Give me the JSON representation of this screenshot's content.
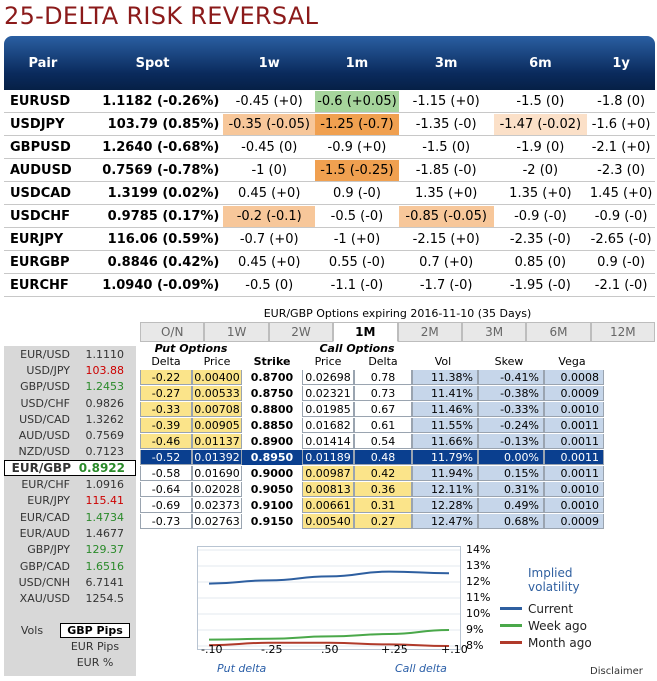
{
  "title": "25-DELTA RISK REVERSAL",
  "rr_headers": [
    "Pair",
    "Spot",
    "1w",
    "1m",
    "3m",
    "6m",
    "1y"
  ],
  "rr_rows": [
    {
      "pair": "EURUSD",
      "spot": "1.1182 (-0.26%)",
      "w1": "-0.45 (+0)",
      "m1": "-0.6 (+0.05)",
      "m3": "-1.15 (+0)",
      "m6": "-1.5 (0)",
      "y1": "-1.8 (0)"
    },
    {
      "pair": "USDJPY",
      "spot": "103.79 (0.85%)",
      "w1": "-0.35 (-0.05)",
      "m1": "-1.25 (-0.7)",
      "m3": "-1.35 (-0)",
      "m6": "-1.47 (-0.02)",
      "y1": "-1.6 (+0)"
    },
    {
      "pair": "GBPUSD",
      "spot": "1.2640 (-0.68%)",
      "w1": "-0.45 (0)",
      "m1": "-0.9 (+0)",
      "m3": "-1.5 (0)",
      "m6": "-1.9 (0)",
      "y1": "-2.1 (+0)"
    },
    {
      "pair": "AUDUSD",
      "spot": "0.7569 (-0.78%)",
      "w1": "-1 (0)",
      "m1": "-1.5 (-0.25)",
      "m3": "-1.85 (-0)",
      "m6": "-2 (0)",
      "y1": "-2.3 (0)"
    },
    {
      "pair": "USDCAD",
      "spot": "1.3199 (0.02%)",
      "w1": "0.45 (+0)",
      "m1": "0.9 (-0)",
      "m3": "1.35 (+0)",
      "m6": "1.35 (+0)",
      "y1": "1.45 (+0)"
    },
    {
      "pair": "USDCHF",
      "spot": "0.9785 (0.17%)",
      "w1": "-0.2 (-0.1)",
      "m1": "-0.5 (-0)",
      "m3": "-0.85 (-0.05)",
      "m6": "-0.9 (-0)",
      "y1": "-0.9 (-0)"
    },
    {
      "pair": "EURJPY",
      "spot": "116.06 (0.59%)",
      "w1": "-0.7 (+0)",
      "m1": "-1 (+0)",
      "m3": "-2.15 (+0)",
      "m6": "-2.35 (-0)",
      "y1": "-2.65 (-0)"
    },
    {
      "pair": "EURGBP",
      "spot": "0.8846 (0.42%)",
      "w1": "0.45 (+0)",
      "m1": "0.55 (-0)",
      "m3": "0.7 (+0)",
      "m6": "0.85 (0)",
      "y1": "0.9 (-0)"
    },
    {
      "pair": "EURCHF",
      "spot": "1.0940 (-0.09%)",
      "w1": "-0.5 (0)",
      "m1": "-1.1 (-0)",
      "m3": "-1.7 (-0)",
      "m6": "-1.95 (-0)",
      "y1": "-2.1 (-0)"
    }
  ],
  "highlight_colors": {
    "green": "#a6d49c",
    "orange": "#f0a050",
    "peach": "#f7c79a",
    "light_peach": "#fbe0c8"
  },
  "quotes": [
    {
      "pair": "EUR/USD",
      "val": "1.1110",
      "color": ""
    },
    {
      "pair": "USD/JPY",
      "val": "103.88",
      "color": "red"
    },
    {
      "pair": "GBP/USD",
      "val": "1.2453",
      "color": "green"
    },
    {
      "pair": "USD/CHF",
      "val": "0.9826",
      "color": ""
    },
    {
      "pair": "USD/CAD",
      "val": "1.3262",
      "color": ""
    },
    {
      "pair": "AUD/USD",
      "val": "0.7569",
      "color": ""
    },
    {
      "pair": "NZD/USD",
      "val": "0.7123",
      "color": ""
    },
    {
      "pair": "EUR/GBP",
      "val": "0.8922",
      "color": "selected"
    },
    {
      "pair": "EUR/CHF",
      "val": "1.0916",
      "color": ""
    },
    {
      "pair": "EUR/JPY",
      "val": "115.41",
      "color": "red"
    },
    {
      "pair": "EUR/CAD",
      "val": "1.4734",
      "color": "green"
    },
    {
      "pair": "EUR/AUD",
      "val": "1.4677",
      "color": ""
    },
    {
      "pair": "GBP/JPY",
      "val": "129.37",
      "color": "green"
    },
    {
      "pair": "GBP/CAD",
      "val": "1.6516",
      "color": "green"
    },
    {
      "pair": "USD/CNH",
      "val": "6.7141",
      "color": ""
    },
    {
      "pair": "XAU/USD",
      "val": "1254.5",
      "color": ""
    }
  ],
  "vols": {
    "label": "Vols",
    "gbp_pips": "GBP Pips",
    "eur_pips": "EUR Pips",
    "eur_pct": "EUR %"
  },
  "options": {
    "title": "EUR/GBP Options expiring 2016-11-10 (35 Days)",
    "tabs": [
      "O/N",
      "1W",
      "2W",
      "1M",
      "2M",
      "3M",
      "6M",
      "12M"
    ],
    "active_tab": "1M",
    "put_label": "Put Options",
    "call_label": "Call Options",
    "columns": [
      "Delta",
      "Price",
      "Strike",
      "Price",
      "Delta",
      "Vol",
      "Skew",
      "Vega"
    ],
    "rows": [
      {
        "pd": "-0.22",
        "pp": "0.00400",
        "strike": "0.8700",
        "cp": "0.02698",
        "cd": "0.78",
        "vol": "11.38%",
        "skew": "-0.41%",
        "vega": "0.0008",
        "put_y": true,
        "call_y": false
      },
      {
        "pd": "-0.27",
        "pp": "0.00533",
        "strike": "0.8750",
        "cp": "0.02321",
        "cd": "0.73",
        "vol": "11.41%",
        "skew": "-0.38%",
        "vega": "0.0009",
        "put_y": true,
        "call_y": false
      },
      {
        "pd": "-0.33",
        "pp": "0.00708",
        "strike": "0.8800",
        "cp": "0.01985",
        "cd": "0.67",
        "vol": "11.46%",
        "skew": "-0.33%",
        "vega": "0.0010",
        "put_y": true,
        "call_y": false
      },
      {
        "pd": "-0.39",
        "pp": "0.00905",
        "strike": "0.8850",
        "cp": "0.01682",
        "cd": "0.61",
        "vol": "11.55%",
        "skew": "-0.24%",
        "vega": "0.0011",
        "put_y": true,
        "call_y": false
      },
      {
        "pd": "-0.46",
        "pp": "0.01137",
        "strike": "0.8900",
        "cp": "0.01414",
        "cd": "0.54",
        "vol": "11.66%",
        "skew": "-0.13%",
        "vega": "0.0011",
        "put_y": true,
        "call_y": false
      },
      {
        "pd": "-0.52",
        "pp": "0.01392",
        "strike": "0.8950",
        "cp": "0.01189",
        "cd": "0.48",
        "vol": "11.79%",
        "skew": "0.00%",
        "vega": "0.0011",
        "atm": true
      },
      {
        "pd": "-0.58",
        "pp": "0.01690",
        "strike": "0.9000",
        "cp": "0.00987",
        "cd": "0.42",
        "vol": "11.94%",
        "skew": "0.15%",
        "vega": "0.0011",
        "put_y": false,
        "call_y": true
      },
      {
        "pd": "-0.64",
        "pp": "0.02028",
        "strike": "0.9050",
        "cp": "0.00813",
        "cd": "0.36",
        "vol": "12.11%",
        "skew": "0.31%",
        "vega": "0.0010",
        "put_y": false,
        "call_y": true
      },
      {
        "pd": "-0.69",
        "pp": "0.02373",
        "strike": "0.9100",
        "cp": "0.00661",
        "cd": "0.31",
        "vol": "12.28%",
        "skew": "0.49%",
        "vega": "0.0010",
        "put_y": false,
        "call_y": true
      },
      {
        "pd": "-0.73",
        "pp": "0.02763",
        "strike": "0.9150",
        "cp": "0.00540",
        "cd": "0.27",
        "vol": "12.47%",
        "skew": "0.68%",
        "vega": "0.0009",
        "put_y": false,
        "call_y": true
      }
    ]
  },
  "vol_chart": {
    "y_ticks": [
      "14%",
      "13%",
      "12%",
      "11%",
      "10%",
      "9%",
      "8%"
    ],
    "x_ticks": [
      "-.10",
      "-.25",
      ".50",
      "+.25",
      "+.10"
    ],
    "put_delta": "Put delta",
    "call_delta": "Call delta",
    "legend_title_1": "Implied",
    "legend_title_2": "volatility",
    "series": [
      {
        "name": "Current",
        "color": "#2e5fa0",
        "values": [
          11.9,
          12.1,
          12.35,
          12.65,
          12.55
        ]
      },
      {
        "name": "Week ago",
        "color": "#4aa84a",
        "values": [
          8.4,
          8.45,
          8.6,
          8.75,
          9.0
        ]
      },
      {
        "name": "Month ago",
        "color": "#b03a2a",
        "values": [
          8.05,
          8.2,
          8.2,
          8.1,
          8.0
        ]
      }
    ]
  },
  "disclaimer": "Disclaimer"
}
